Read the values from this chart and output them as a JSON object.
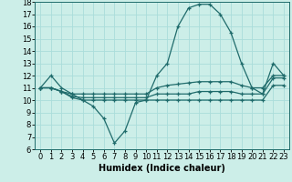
{
  "xlabel": "Humidex (Indice chaleur)",
  "line_color": "#1f6b6b",
  "bg_color": "#cceee8",
  "grid_color": "#aaddda",
  "x_values": [
    0,
    1,
    2,
    3,
    4,
    5,
    6,
    7,
    8,
    9,
    10,
    11,
    12,
    13,
    14,
    15,
    16,
    17,
    18,
    19,
    20,
    21,
    22,
    23
  ],
  "series": {
    "main": [
      11,
      12,
      11,
      10.5,
      10,
      9.5,
      8.5,
      6.5,
      7.5,
      9.8,
      10,
      12,
      13,
      16,
      17.5,
      17.8,
      17.8,
      17,
      15.5,
      13,
      11,
      10.5,
      13,
      12
    ],
    "line2": [
      11,
      11,
      10.7,
      10.5,
      10.5,
      10.5,
      10.5,
      10.5,
      10.5,
      10.5,
      10.5,
      11,
      11.2,
      11.3,
      11.4,
      11.5,
      11.5,
      11.5,
      11.5,
      11.2,
      11,
      11,
      12,
      12
    ],
    "line3": [
      11,
      11,
      10.7,
      10.3,
      10.2,
      10.2,
      10.2,
      10.2,
      10.2,
      10.2,
      10.2,
      10.5,
      10.5,
      10.5,
      10.5,
      10.7,
      10.7,
      10.7,
      10.7,
      10.5,
      10.5,
      10.5,
      11.8,
      11.8
    ],
    "line4": [
      11,
      11,
      10.7,
      10.2,
      10.0,
      10.0,
      10.0,
      10.0,
      10.0,
      10.0,
      10.0,
      10.0,
      10.0,
      10.0,
      10.0,
      10.0,
      10.0,
      10.0,
      10.0,
      10.0,
      10.0,
      10.0,
      11.2,
      11.2
    ]
  },
  "ylim": [
    6,
    18
  ],
  "yticks": [
    6,
    7,
    8,
    9,
    10,
    11,
    12,
    13,
    14,
    15,
    16,
    17,
    18
  ],
  "xticks": [
    0,
    1,
    2,
    3,
    4,
    5,
    6,
    7,
    8,
    9,
    10,
    11,
    12,
    13,
    14,
    15,
    16,
    17,
    18,
    19,
    20,
    21,
    22,
    23
  ],
  "marker": "+",
  "markersize": 3.5,
  "linewidth": 0.9,
  "xlabel_fontsize": 7,
  "tick_fontsize": 6
}
